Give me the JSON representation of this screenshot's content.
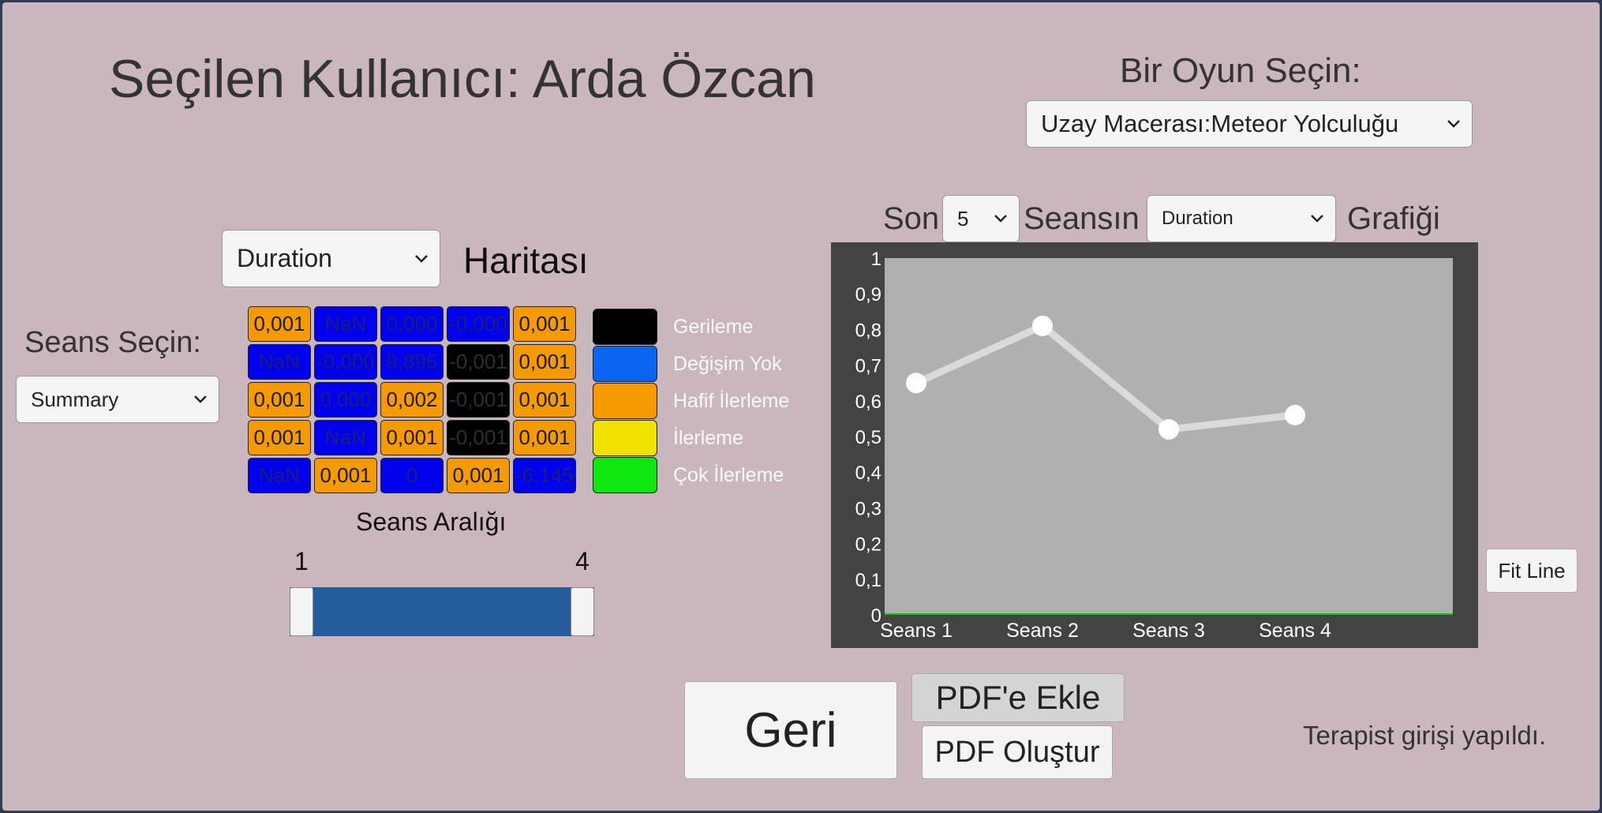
{
  "header": {
    "title": "Seçilen Kullanıcı: Arda Özcan"
  },
  "game_select": {
    "label": "Bir Oyun Seçin:",
    "value": "Uzay Macerası:Meteor Yolculuğu"
  },
  "session_select": {
    "label": "Seans Seçin:",
    "value": "Summary"
  },
  "map": {
    "metric_value": "Duration",
    "title": "Haritası",
    "grid": [
      [
        {
          "t": "0,001",
          "c": "orange"
        },
        {
          "t": "NaN",
          "c": "blue"
        },
        {
          "t": "0,000",
          "c": "blue"
        },
        {
          "t": "-0,000",
          "c": "blue"
        },
        {
          "t": "0,001",
          "c": "orange"
        }
      ],
      [
        {
          "t": "NaN",
          "c": "blue"
        },
        {
          "t": "-0,000",
          "c": "blue"
        },
        {
          "t": "9,896",
          "c": "blue"
        },
        {
          "t": "-0,001",
          "c": "black"
        },
        {
          "t": "0,001",
          "c": "orange"
        }
      ],
      [
        {
          "t": "0,001",
          "c": "orange"
        },
        {
          "t": "0,000",
          "c": "blue"
        },
        {
          "t": "0,002",
          "c": "orange"
        },
        {
          "t": "-0,001",
          "c": "black"
        },
        {
          "t": "0,001",
          "c": "orange"
        }
      ],
      [
        {
          "t": "0,001",
          "c": "orange"
        },
        {
          "t": "NaN",
          "c": "blue"
        },
        {
          "t": "0,001",
          "c": "orange"
        },
        {
          "t": "-0,001",
          "c": "black"
        },
        {
          "t": "0,001",
          "c": "orange"
        }
      ],
      [
        {
          "t": "NaN",
          "c": "blue"
        },
        {
          "t": "0,001",
          "c": "orange"
        },
        {
          "t": "0",
          "c": "blue"
        },
        {
          "t": "0,001",
          "c": "orange"
        },
        {
          "t": "-6,145",
          "c": "blue"
        }
      ]
    ],
    "legend": [
      {
        "label": "Gerileme",
        "color": "#000000"
      },
      {
        "label": "Değişim Yok",
        "color": "#0a64f0"
      },
      {
        "label": "Hafif İlerleme",
        "color": "#f59a00"
      },
      {
        "label": "İlerleme",
        "color": "#f2e200"
      },
      {
        "label": "Çok İlerleme",
        "color": "#0ee80e"
      }
    ]
  },
  "range": {
    "label": "Seans Aralığı",
    "min_label": "1",
    "max_label": "4",
    "min": 1,
    "max": 4
  },
  "graph_header": {
    "son": "Son",
    "count": "5",
    "seansin": "Seansın",
    "metric": "Duration",
    "grafigi": "Grafiği"
  },
  "chart_data": {
    "type": "line",
    "categories": [
      "Seans 1",
      "Seans 2",
      "Seans 3",
      "Seans 4"
    ],
    "series": [
      {
        "values": [
          0.65,
          0.81,
          0.52,
          0.56
        ]
      }
    ],
    "ylim": [
      0,
      1
    ],
    "yticks": [
      "0",
      "0,1",
      "0,2",
      "0,3",
      "0,4",
      "0,5",
      "0,6",
      "0,7",
      "0,8",
      "0,9",
      "1"
    ],
    "grid": false,
    "colors": {
      "line": "#dadada",
      "point": "#ffffff",
      "plot_bg": "#b0b0b0",
      "frame": "#434343",
      "baseline": "#00cc00"
    }
  },
  "buttons": {
    "fit_line": "Fit Line",
    "back": "Geri",
    "add_pdf": "PDF'e Ekle",
    "create_pdf": "PDF Oluştur"
  },
  "status": "Terapist girişi yapıldı.",
  "colors": {
    "background": "#cab7bd",
    "cell_orange": "#f59a00",
    "cell_blue": "#0000ee",
    "cell_black": "#000000",
    "slider_fill": "#255c9c"
  }
}
